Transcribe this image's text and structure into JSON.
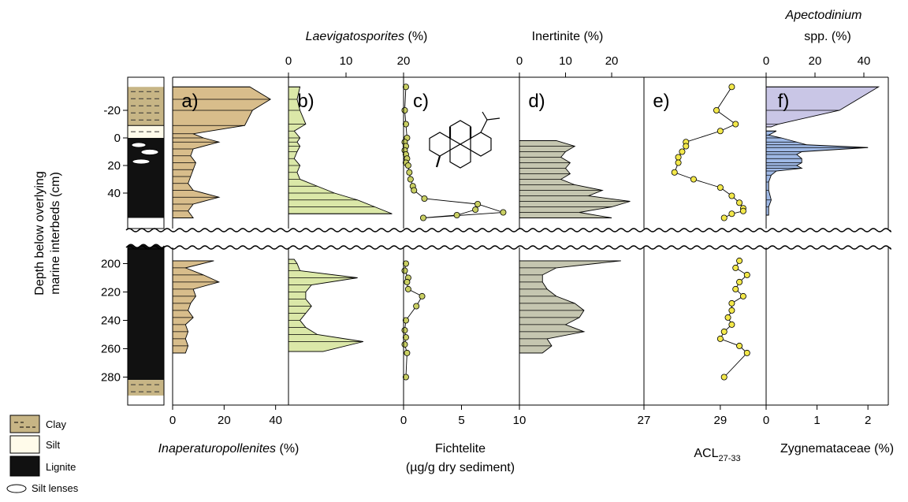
{
  "figure": {
    "yaxis_label_line1": "Depth below overlying",
    "yaxis_label_line2": "marine interbeds (cm)",
    "upper_y_ticks": [
      "-20",
      "0",
      "20",
      "40"
    ],
    "lower_y_ticks": [
      "200",
      "220",
      "240",
      "260",
      "280"
    ]
  },
  "legend": {
    "items": [
      {
        "label": "Clay",
        "color": "#c7b585"
      },
      {
        "label": "Silt",
        "color": "#fffbea"
      },
      {
        "label": "Lignite",
        "color": "#111111"
      },
      {
        "label": "Silt lenses",
        "color": "#ffffff"
      }
    ]
  },
  "colors": {
    "panel_a": "#d8bd8b",
    "panel_b": "#dbe8a8",
    "panel_c_marker": "#c9cf63",
    "panel_d": "#c5c6b0",
    "panel_e_marker": "#f3e84a",
    "panel_f_apecto": "#c9c6e6",
    "panel_f_zygne": "#9fb9e6",
    "lignite": "#111111",
    "clay": "#c7b585",
    "silt": "#fffbea"
  },
  "panels": {
    "a": {
      "letter": "a)",
      "bottom_axis_label": "Inaperaturopollenites",
      "bottom_axis_unit": " (%)",
      "bottom_ticks": [
        "0",
        "20",
        "40"
      ]
    },
    "b": {
      "letter": "b)",
      "top_axis_label": "Laevigatosporites",
      "top_axis_unit": " (%)",
      "top_ticks": [
        "0",
        "10",
        "20"
      ]
    },
    "c": {
      "letter": "c)",
      "bottom_axis_label_line1": "Fichtelite",
      "bottom_axis_label_line2": "(µg/g dry sediment)",
      "bottom_ticks": [
        "0",
        "5",
        "10"
      ]
    },
    "d": {
      "letter": "d)",
      "top_axis_label": "Inertinite (%)",
      "top_ticks": [
        "0",
        "10",
        "20"
      ]
    },
    "e": {
      "letter": "e)",
      "bottom_axis_label_main": "ACL",
      "bottom_axis_label_sub": "27-33",
      "bottom_ticks": [
        "27",
        "29"
      ]
    },
    "f": {
      "letter": "f)",
      "top_axis_label_line1": "Apectodinium",
      "top_axis_label_line2": "spp. (%)",
      "top_ticks": [
        "0",
        "20",
        "40"
      ],
      "bottom_axis_label": "Zygnemataceae (%)",
      "bottom_ticks": [
        "0",
        "1",
        "2"
      ]
    }
  },
  "chart_data": {
    "type": "area",
    "ylabel": "Depth below overlying marine interbeds (cm)",
    "lithology": [
      {
        "from": -37,
        "to": -9,
        "lith": "Clay"
      },
      {
        "from": -9,
        "to": 0,
        "lith": "Silt"
      },
      {
        "from": 0,
        "to": 58,
        "lith": "Lignite"
      },
      {
        "from": 187,
        "to": 282,
        "lith": "Lignite"
      },
      {
        "from": 282,
        "to": 293,
        "lith": "Clay"
      }
    ],
    "series": [
      {
        "panel": "a",
        "name": "Inaperaturopollenites",
        "unit": "%",
        "xlim": [
          0,
          45
        ],
        "upper": {
          "depth": [
            -37,
            -28,
            -20,
            -9,
            -3,
            0,
            3,
            8,
            13,
            18,
            23,
            28,
            33,
            38,
            43,
            48,
            53,
            58
          ],
          "values": [
            30,
            38,
            31,
            28,
            8,
            12,
            18,
            8,
            7,
            9,
            8,
            7,
            6,
            8,
            18,
            8,
            6,
            8
          ]
        },
        "lower": {
          "depth": [
            198,
            203,
            208,
            213,
            218,
            223,
            228,
            233,
            238,
            243,
            248,
            253,
            258,
            263
          ],
          "values": [
            16,
            5,
            12,
            18,
            8,
            9,
            7,
            6,
            8,
            5,
            6,
            5,
            6,
            5
          ]
        }
      },
      {
        "panel": "b",
        "name": "Laevigatosporites",
        "unit": "%",
        "xlim": [
          0,
          20
        ],
        "upper": {
          "depth": [
            -37,
            -28,
            -20,
            -10,
            -5,
            0,
            3,
            6,
            10,
            15,
            20,
            25,
            30,
            35,
            40,
            45,
            50,
            55
          ],
          "values": [
            2,
            1.5,
            2,
            3,
            1,
            2,
            1.5,
            2,
            1.5,
            1,
            2,
            1.5,
            2,
            5,
            8,
            12,
            15,
            18
          ]
        },
        "lower": {
          "depth": [
            197,
            200,
            205,
            210,
            215,
            220,
            225,
            230,
            235,
            240,
            245,
            250,
            255,
            262
          ],
          "values": [
            1,
            1.5,
            2,
            12,
            4,
            3,
            3,
            4,
            3,
            2,
            3,
            5,
            13,
            6
          ]
        }
      },
      {
        "panel": "c",
        "name": "Fichtelite",
        "unit": "µg/g dry sediment",
        "xlim": [
          0,
          10
        ],
        "upper": {
          "depth": [
            -37,
            -20,
            -10,
            0,
            3,
            6,
            9,
            12,
            15,
            18,
            20,
            25,
            30,
            35,
            38,
            44,
            48,
            54,
            58,
            56,
            52
          ],
          "values": [
            0.2,
            0.1,
            0.2,
            0.3,
            0.1,
            0.2,
            0.1,
            0.2,
            0.3,
            0.2,
            0.4,
            0.5,
            0.6,
            0.8,
            0.9,
            1.8,
            6.4,
            8.6,
            1.7,
            4.6,
            6.2
          ]
        },
        "lower": {
          "depth": [
            200,
            205,
            210,
            213,
            218,
            223,
            230,
            240,
            247,
            252,
            257,
            263,
            280
          ],
          "values": [
            0.2,
            0.1,
            0.4,
            0.3,
            0.4,
            1.6,
            1.1,
            0.2,
            0.1,
            0.2,
            0.1,
            0.3,
            0.2
          ]
        }
      },
      {
        "panel": "d",
        "name": "Inertinite",
        "unit": "%",
        "xlim": [
          0,
          27
        ],
        "upper": {
          "depth": [
            2,
            6,
            10,
            14,
            18,
            22,
            26,
            30,
            34,
            38,
            42,
            46,
            50,
            54,
            58
          ],
          "values": [
            8,
            12,
            10,
            9,
            11,
            10,
            11,
            9,
            12,
            18,
            15,
            24,
            20,
            13,
            20
          ]
        },
        "lower": {
          "depth": [
            198,
            203,
            208,
            213,
            218,
            223,
            228,
            233,
            238,
            243,
            248,
            253,
            258,
            263
          ],
          "values": [
            22,
            8,
            5,
            5,
            6,
            8,
            12,
            14,
            13,
            10,
            14,
            6,
            7,
            5
          ]
        }
      },
      {
        "panel": "e",
        "name": "ACL27-33",
        "unit": "",
        "xlim": [
          27,
          30.2
        ],
        "upper": {
          "depth": [
            -37,
            -20,
            -10,
            -5,
            3,
            6,
            10,
            14,
            18,
            25,
            30,
            36,
            42,
            47,
            51,
            53,
            55,
            58
          ],
          "values": [
            29.3,
            28.9,
            29.4,
            29.0,
            28.1,
            28.1,
            28.0,
            27.9,
            27.9,
            27.8,
            28.3,
            29.0,
            29.3,
            29.5,
            29.6,
            29.6,
            29.3,
            29.1
          ]
        },
        "lower": {
          "depth": [
            198,
            203,
            208,
            213,
            218,
            223,
            228,
            233,
            238,
            243,
            248,
            253,
            258,
            263,
            280
          ],
          "values": [
            29.5,
            29.4,
            29.7,
            29.5,
            29.4,
            29.6,
            29.3,
            29.3,
            29.2,
            29.3,
            29.1,
            29.0,
            29.5,
            29.7,
            29.1
          ]
        }
      },
      {
        "panel": "f",
        "name": "Apectodinium spp.",
        "unit": "%",
        "xlim": [
          0,
          50
        ],
        "upper": {
          "depth": [
            -37,
            -20,
            -10,
            -8
          ],
          "values": [
            46,
            30,
            5,
            2
          ]
        }
      },
      {
        "panel": "f",
        "name": "Zygnemataceae",
        "unit": "%",
        "xlim": [
          0,
          2.4
        ],
        "upper": {
          "depth": [
            -5,
            -2,
            0,
            3,
            5,
            7,
            10,
            12,
            15,
            18,
            20,
            22,
            24,
            27,
            32,
            38,
            45,
            50,
            56
          ],
          "values": [
            0.2,
            0.05,
            0.3,
            0.6,
            0.8,
            2.0,
            0.7,
            0.6,
            0.7,
            0.7,
            0.6,
            0.7,
            0.2,
            0.1,
            0.05,
            0.05,
            0.1,
            0.05,
            0.05
          ]
        }
      }
    ]
  }
}
